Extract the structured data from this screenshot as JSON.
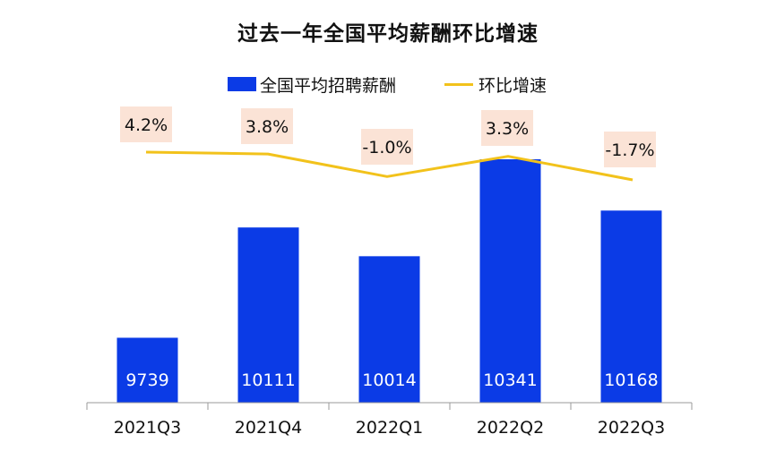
{
  "chart_data": {
    "type": "bar",
    "title": "过去一年全国平均薪酬环比增速",
    "categories": [
      "2021Q3",
      "2021Q4",
      "2022Q1",
      "2022Q2",
      "2022Q3"
    ],
    "series": [
      {
        "name": "全国平均招聘薪酬",
        "type": "bar",
        "color": "#0b3be6",
        "values": [
          9739,
          10111,
          10014,
          10341,
          10168
        ],
        "labels": [
          "9739",
          "10111",
          "10014",
          "10341",
          "10168"
        ]
      },
      {
        "name": "环比增速",
        "type": "line",
        "color": "#f2c21b",
        "values": [
          4.2,
          3.8,
          -1.0,
          3.3,
          -1.7
        ],
        "labels": [
          "4.2%",
          "3.8%",
          "-1.0%",
          "3.3%",
          "-1.7%"
        ],
        "label_background": "#fbe3d6"
      }
    ],
    "xlabel": "",
    "ylabel": "",
    "grid": false,
    "legend_position": "top"
  }
}
